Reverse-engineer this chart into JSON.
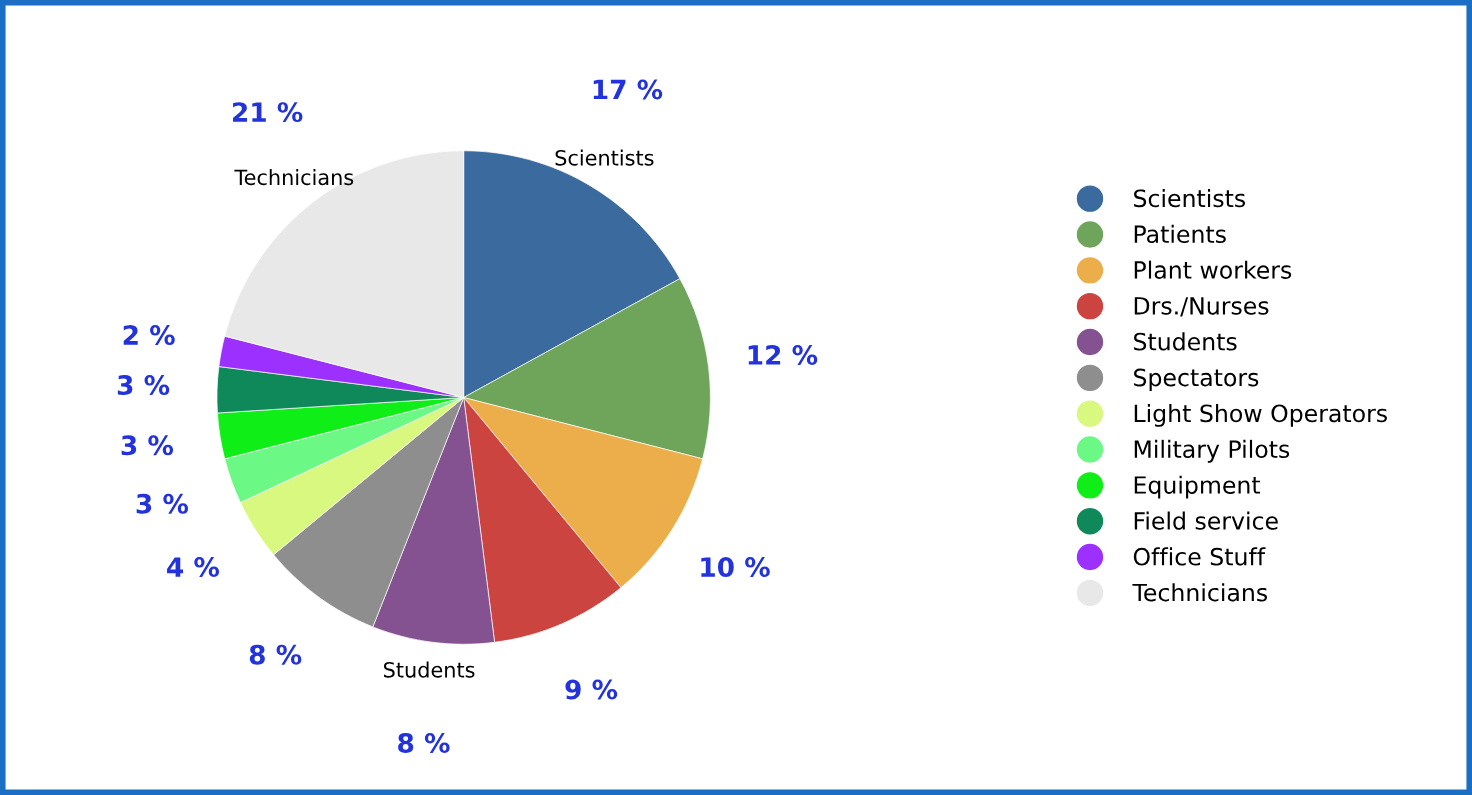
{
  "chart_data": {
    "type": "pie",
    "categories": [
      "Scientists",
      "Patients",
      "Plant workers",
      "Drs./Nurses",
      "Students",
      "Spectators",
      "Light Show Operators",
      "Military Pilots",
      "Equipment",
      "Field service",
      "Office Stuff",
      "Technicians"
    ],
    "values": [
      17,
      12,
      10,
      9,
      8,
      8,
      4,
      3,
      3,
      3,
      2,
      21
    ],
    "colors": [
      "#3a6a9e",
      "#6ea55a",
      "#ebae4a",
      "#cc4440",
      "#845290",
      "#8e8e8e",
      "#d8f880",
      "#6cf884",
      "#10ee18",
      "#10895a",
      "#9b30ff",
      "#e8e8e8"
    ],
    "value_labels": [
      "17 %",
      "12 %",
      "10 %",
      "9 %",
      "8 %",
      "8 %",
      "4 %",
      "3 %",
      "3 %",
      "3 %",
      "2 %",
      "21 %"
    ],
    "annotations": [
      {
        "text": "Scientists",
        "x": "Scientists"
      },
      {
        "text": "Students",
        "x": "Students"
      },
      {
        "text": "Technicians",
        "x": "Technicians"
      }
    ],
    "legend": "right"
  }
}
